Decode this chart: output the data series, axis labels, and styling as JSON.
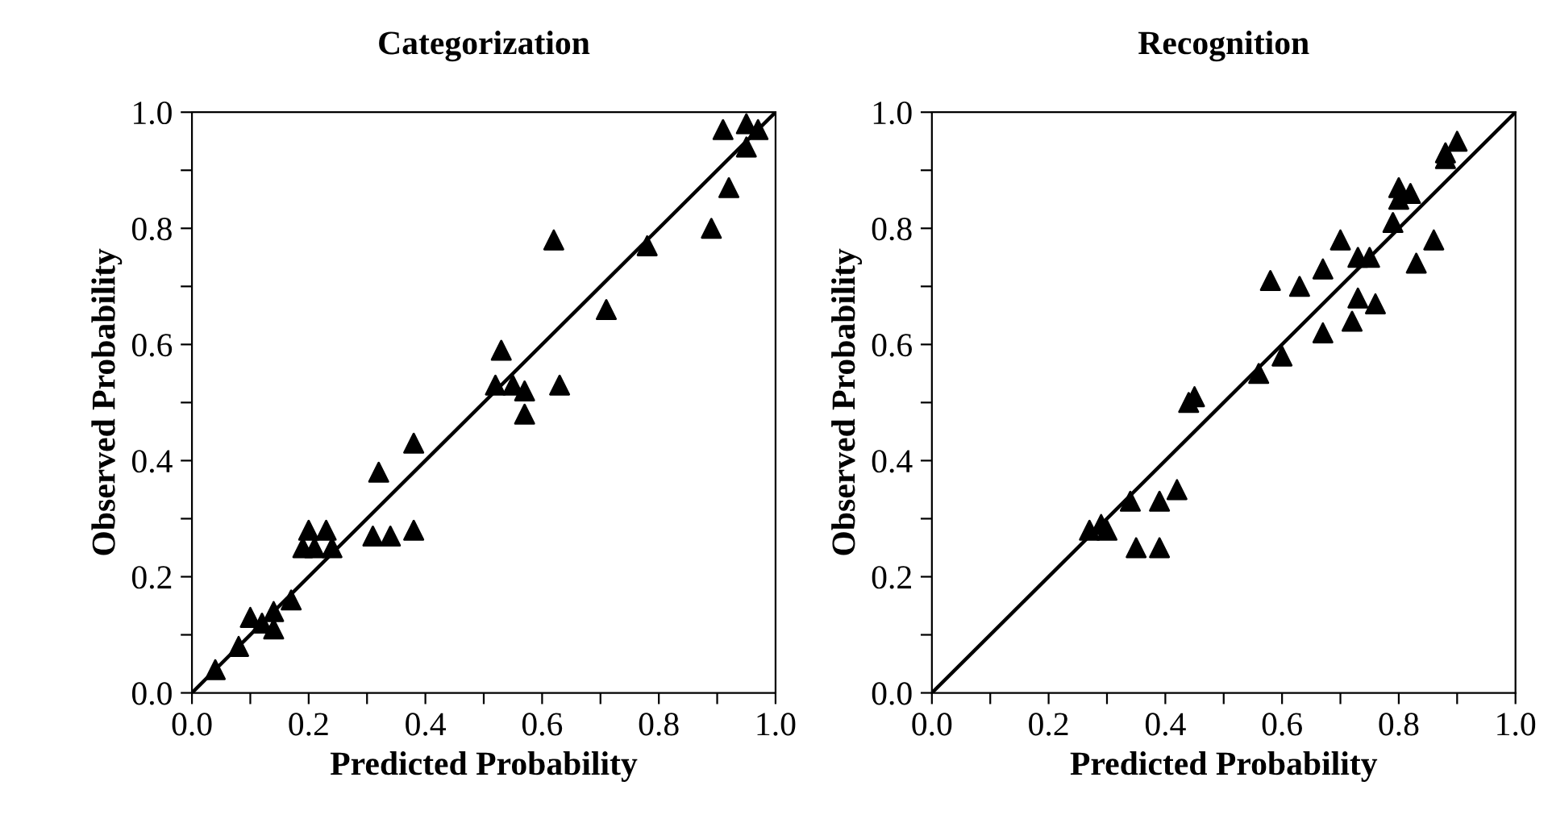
{
  "chart_data": [
    {
      "type": "scatter",
      "title": "Categorization",
      "xlabel": "Predicted Probability",
      "ylabel": "Observed Probability",
      "xlim": [
        0,
        1
      ],
      "ylim": [
        0,
        1
      ],
      "xticks": [
        {
          "value": 0,
          "label": "0.0"
        },
        {
          "value": 0.1,
          "label": null
        },
        {
          "value": 0.2,
          "label": "0.2"
        },
        {
          "value": 0.3,
          "label": null
        },
        {
          "value": 0.4,
          "label": "0.4"
        },
        {
          "value": 0.5,
          "label": null
        },
        {
          "value": 0.6,
          "label": "0.6"
        },
        {
          "value": 0.7,
          "label": null
        },
        {
          "value": 0.8,
          "label": "0.8"
        },
        {
          "value": 0.9,
          "label": null
        },
        {
          "value": 1,
          "label": "1.0"
        }
      ],
      "yticks": [
        {
          "value": 0,
          "label": "0.0"
        },
        {
          "value": 0.1,
          "label": null
        },
        {
          "value": 0.2,
          "label": "0.2"
        },
        {
          "value": 0.3,
          "label": null
        },
        {
          "value": 0.4,
          "label": "0.4"
        },
        {
          "value": 0.5,
          "label": null
        },
        {
          "value": 0.6,
          "label": "0.6"
        },
        {
          "value": 0.7,
          "label": null
        },
        {
          "value": 0.8,
          "label": "0.8"
        },
        {
          "value": 0.9,
          "label": null
        },
        {
          "value": 1,
          "label": "1.0"
        }
      ],
      "grid": false,
      "legend": false,
      "series": [
        {
          "color": "#000000",
          "marker": "triangle",
          "x": [
            0.04,
            0.08,
            0.1,
            0.12,
            0.14,
            0.14,
            0.17,
            0.19,
            0.2,
            0.21,
            0.23,
            0.24,
            0.31,
            0.32,
            0.34,
            0.38,
            0.38,
            0.52,
            0.53,
            0.55,
            0.57,
            0.57,
            0.63,
            0.62,
            0.71,
            0.78,
            0.89,
            0.92,
            0.91,
            0.95,
            0.95,
            0.97
          ],
          "values": [
            0.04,
            0.08,
            0.13,
            0.12,
            0.11,
            0.14,
            0.16,
            0.25,
            0.28,
            0.25,
            0.28,
            0.25,
            0.27,
            0.38,
            0.27,
            0.28,
            0.43,
            0.53,
            0.59,
            0.53,
            0.52,
            0.48,
            0.53,
            0.78,
            0.66,
            0.77,
            0.8,
            0.87,
            0.97,
            0.94,
            0.98,
            0.97
          ]
        },
        {
          "type": "line",
          "color": "#000000",
          "marker": "none",
          "line_style": "solid",
          "x": [
            0,
            1
          ],
          "values": [
            0,
            1
          ]
        }
      ]
    },
    {
      "type": "scatter",
      "title": "Recognition",
      "xlabel": "Predicted Probability",
      "ylabel": "Observed Probability",
      "xlim": [
        0,
        1
      ],
      "ylim": [
        0,
        1
      ],
      "xticks": [
        {
          "value": 0,
          "label": "0.0"
        },
        {
          "value": 0.1,
          "label": null
        },
        {
          "value": 0.2,
          "label": "0.2"
        },
        {
          "value": 0.3,
          "label": null
        },
        {
          "value": 0.4,
          "label": "0.4"
        },
        {
          "value": 0.5,
          "label": null
        },
        {
          "value": 0.6,
          "label": "0.6"
        },
        {
          "value": 0.7,
          "label": null
        },
        {
          "value": 0.8,
          "label": "0.8"
        },
        {
          "value": 0.9,
          "label": null
        },
        {
          "value": 1,
          "label": "1.0"
        }
      ],
      "yticks": [
        {
          "value": 0,
          "label": "0.0"
        },
        {
          "value": 0.1,
          "label": null
        },
        {
          "value": 0.2,
          "label": "0.2"
        },
        {
          "value": 0.3,
          "label": null
        },
        {
          "value": 0.4,
          "label": "0.4"
        },
        {
          "value": 0.5,
          "label": null
        },
        {
          "value": 0.6,
          "label": "0.6"
        },
        {
          "value": 0.7,
          "label": null
        },
        {
          "value": 0.8,
          "label": "0.8"
        },
        {
          "value": 0.9,
          "label": null
        },
        {
          "value": 1,
          "label": "1.0"
        }
      ],
      "grid": false,
      "legend": false,
      "series": [
        {
          "color": "#000000",
          "marker": "triangle",
          "x": [
            0.27,
            0.29,
            0.3,
            0.34,
            0.35,
            0.39,
            0.39,
            0.42,
            0.44,
            0.45,
            0.56,
            0.6,
            0.58,
            0.63,
            0.67,
            0.67,
            0.7,
            0.72,
            0.73,
            0.73,
            0.75,
            0.76,
            0.79,
            0.8,
            0.8,
            0.82,
            0.83,
            0.86,
            0.88,
            0.88,
            0.9
          ],
          "values": [
            0.28,
            0.29,
            0.28,
            0.33,
            0.25,
            0.33,
            0.25,
            0.35,
            0.5,
            0.51,
            0.55,
            0.58,
            0.71,
            0.7,
            0.62,
            0.73,
            0.78,
            0.64,
            0.68,
            0.75,
            0.75,
            0.67,
            0.81,
            0.87,
            0.85,
            0.86,
            0.74,
            0.78,
            0.92,
            0.93,
            0.95
          ]
        },
        {
          "type": "line",
          "color": "#000000",
          "marker": "none",
          "line_style": "solid",
          "x": [
            0,
            1
          ],
          "values": [
            0,
            1
          ]
        }
      ]
    }
  ]
}
